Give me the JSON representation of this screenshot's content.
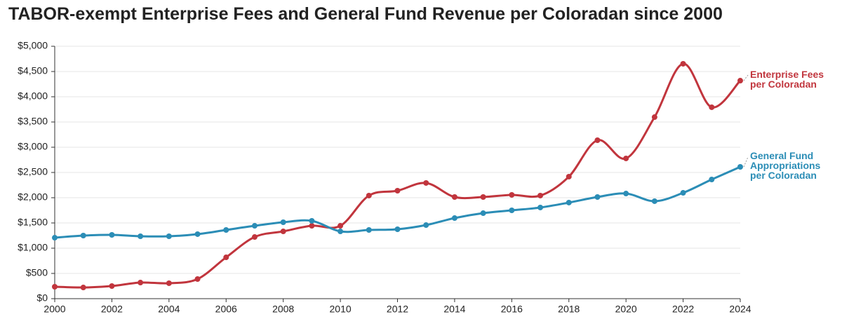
{
  "chart_data": {
    "type": "line",
    "title": "TABOR-exempt Enterprise Fees and General Fund Revenue per Coloradan since 2000",
    "x": [
      2000,
      2001,
      2002,
      2003,
      2004,
      2005,
      2006,
      2007,
      2008,
      2009,
      2010,
      2011,
      2012,
      2013,
      2014,
      2015,
      2016,
      2017,
      2018,
      2019,
      2020,
      2021,
      2022,
      2023,
      2024
    ],
    "series": [
      {
        "name": "Enterprise Fees per Coloradan",
        "color": "#c1353d",
        "values": [
          236,
          222,
          250,
          319,
          306,
          389,
          819,
          1222,
          1333,
          1444,
          1444,
          2042,
          2139,
          2292,
          2014,
          2014,
          2056,
          2042,
          2417,
          3139,
          2778,
          3597,
          4653,
          3792,
          4319
        ]
      },
      {
        "name": "General Fund Appropriations per Coloradan",
        "color": "#2b8db6",
        "values": [
          1208,
          1250,
          1264,
          1236,
          1236,
          1278,
          1361,
          1444,
          1514,
          1542,
          1333,
          1361,
          1375,
          1458,
          1597,
          1694,
          1750,
          1806,
          1903,
          2014,
          2083,
          1931,
          2097,
          2361,
          2611
        ]
      }
    ],
    "xlim": [
      2000,
      2024
    ],
    "xticks": [
      2000,
      2002,
      2004,
      2006,
      2008,
      2010,
      2012,
      2014,
      2016,
      2018,
      2020,
      2022,
      2024
    ],
    "ylim": [
      0,
      5000
    ],
    "yticks": [
      {
        "value": 0,
        "label": "$0"
      },
      {
        "value": 500,
        "label": "$500"
      },
      {
        "value": 1000,
        "label": "$1,000"
      },
      {
        "value": 1500,
        "label": "$1,500"
      },
      {
        "value": 2000,
        "label": "$2,000"
      },
      {
        "value": 2500,
        "label": "$2,500"
      },
      {
        "value": 3000,
        "label": "$3,000"
      },
      {
        "value": 3500,
        "label": "$3,500"
      },
      {
        "value": 4000,
        "label": "$4,000"
      },
      {
        "value": 4500,
        "label": "$4,500"
      },
      {
        "value": 5000,
        "label": "$5,000"
      }
    ],
    "grid": true
  }
}
